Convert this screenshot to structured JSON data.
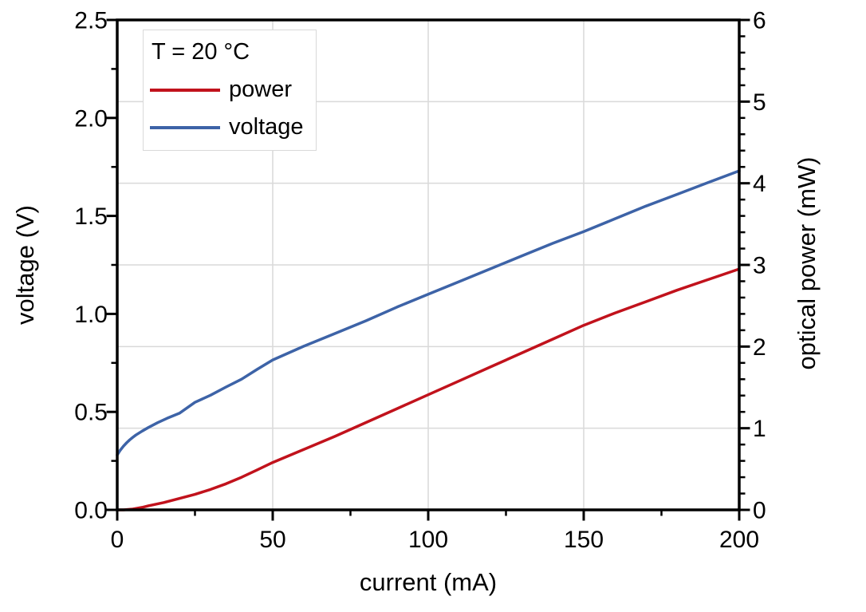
{
  "figure": {
    "legend": {
      "title": "T = 20 °C",
      "entries": [
        {
          "label": "power",
          "color": "#c1121c"
        },
        {
          "label": "voltage",
          "color": "#3d63a7"
        }
      ]
    }
  },
  "chart_data": {
    "type": "line",
    "title": "",
    "xlabel": "current (mA)",
    "ylabel_left": "voltage (V)",
    "ylabel_right": "optical power (mW)",
    "x_axis": {
      "min": 0,
      "max": 200,
      "major_ticks": [
        0,
        50,
        100,
        150,
        200
      ],
      "tick_labels": [
        "0",
        "50",
        "100",
        "150",
        "200"
      ],
      "minor_step": 25
    },
    "y_left": {
      "min": 0,
      "max": 2.5,
      "major_ticks": [
        0,
        0.5,
        1.0,
        1.5,
        2.0,
        2.5
      ],
      "tick_labels": [
        "0.0",
        "0.5",
        "1.0",
        "1.5",
        "2.0",
        "2.5"
      ],
      "minor_step": 0.25
    },
    "y_right": {
      "min": 0,
      "max": 6,
      "major_ticks": [
        0,
        1,
        2,
        3,
        4,
        5,
        6
      ],
      "tick_labels": [
        "0",
        "1",
        "2",
        "3",
        "4",
        "5",
        "6"
      ],
      "minor_step": 0.2
    },
    "grid": {
      "show": true,
      "color": "#d9d9d9",
      "vertical_at_x": [
        50,
        100,
        150
      ],
      "horizontal_at_right": [
        1,
        2,
        3,
        4,
        5
      ]
    },
    "axis_color": "#000000",
    "legend_position": "top-left",
    "series": [
      {
        "name": "voltage",
        "axis": "left",
        "color": "#3d63a7",
        "x": [
          0,
          1,
          2,
          3,
          4,
          5,
          6,
          8,
          10,
          13,
          16,
          20,
          25,
          30,
          35,
          40,
          45,
          50,
          60,
          70,
          80,
          90,
          100,
          110,
          120,
          130,
          140,
          150,
          160,
          170,
          180,
          190,
          200
        ],
        "y": [
          0.28,
          0.305,
          0.325,
          0.342,
          0.357,
          0.37,
          0.382,
          0.402,
          0.42,
          0.445,
          0.467,
          0.493,
          0.549,
          0.585,
          0.627,
          0.667,
          0.717,
          0.765,
          0.835,
          0.9,
          0.965,
          1.035,
          1.1,
          1.165,
          1.23,
          1.295,
          1.36,
          1.42,
          1.485,
          1.55,
          1.61,
          1.67,
          1.73
        ]
      },
      {
        "name": "power",
        "axis": "right",
        "color": "#c1121c",
        "x": [
          0,
          2,
          5,
          8,
          10,
          15,
          20,
          25,
          30,
          35,
          40,
          45,
          50,
          60,
          70,
          80,
          90,
          100,
          110,
          120,
          130,
          140,
          150,
          160,
          170,
          180,
          190,
          200
        ],
        "y": [
          0.0,
          0.0,
          0.01,
          0.03,
          0.05,
          0.09,
          0.14,
          0.19,
          0.25,
          0.32,
          0.4,
          0.49,
          0.58,
          0.74,
          0.9,
          1.07,
          1.24,
          1.41,
          1.58,
          1.75,
          1.92,
          2.09,
          2.26,
          2.41,
          2.55,
          2.69,
          2.82,
          2.95
        ]
      }
    ]
  }
}
